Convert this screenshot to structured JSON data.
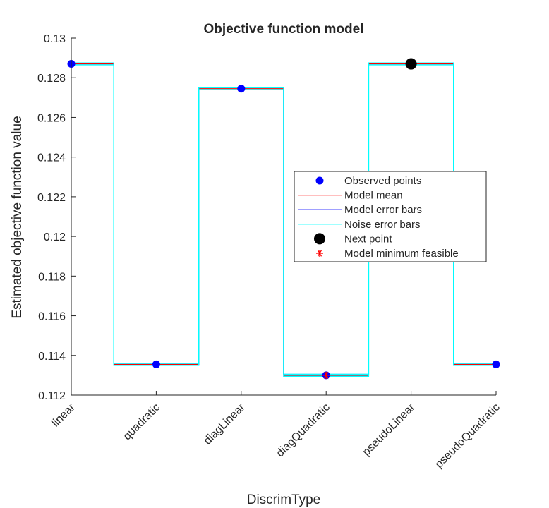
{
  "chart_data": {
    "type": "scatter",
    "title": "Objective function model",
    "xlabel": "DiscrimType",
    "ylabel": "Estimated objective function value",
    "categories": [
      "linear",
      "quadratic",
      "diagLinear",
      "diagQuadratic",
      "pseudoLinear",
      "pseudoQuadratic"
    ],
    "ylim": [
      0.112,
      0.13
    ],
    "yticks": [
      0.112,
      0.114,
      0.116,
      0.118,
      0.12,
      0.122,
      0.124,
      0.126,
      0.128,
      0.13
    ],
    "ytick_labels": [
      "0.112",
      "0.114",
      "0.116",
      "0.118",
      "0.12",
      "0.122",
      "0.124",
      "0.126",
      "0.128",
      "0.13"
    ],
    "legend_position": "right-center",
    "grid": false,
    "series": [
      {
        "name": "Observed points",
        "marker": "filled-circle",
        "color": "#0000ff",
        "values": [
          0.1287,
          0.11355,
          0.12745,
          0.113,
          0.1287,
          0.11355
        ]
      },
      {
        "name": "Model mean",
        "style": "step-line",
        "color": "#ff0000",
        "values": [
          0.1287,
          0.11355,
          0.12745,
          0.113,
          0.1287,
          0.11355
        ]
      },
      {
        "name": "Model error bars",
        "style": "step-line",
        "color": "#0000ff",
        "upper": [
          0.12875,
          0.1136,
          0.1275,
          0.11305,
          0.12875,
          0.1136
        ],
        "lower": [
          0.12865,
          0.1135,
          0.1274,
          0.11295,
          0.12865,
          0.1135
        ]
      },
      {
        "name": "Noise error bars",
        "style": "step-line",
        "color": "#00ffff",
        "upper": [
          0.12875,
          0.1136,
          0.1275,
          0.11305,
          0.12875,
          0.1136
        ],
        "lower": [
          0.12865,
          0.1135,
          0.1274,
          0.11295,
          0.12865,
          0.1135
        ]
      },
      {
        "name": "Next point",
        "marker": "filled-circle",
        "color": "#000000",
        "points": [
          {
            "x": "pseudoLinear",
            "y": 0.1287
          }
        ]
      },
      {
        "name": "Model minimum feasible",
        "marker": "asterisk",
        "color": "#ff0000",
        "points": [
          {
            "x": "diagQuadratic",
            "y": 0.113
          }
        ]
      }
    ]
  }
}
